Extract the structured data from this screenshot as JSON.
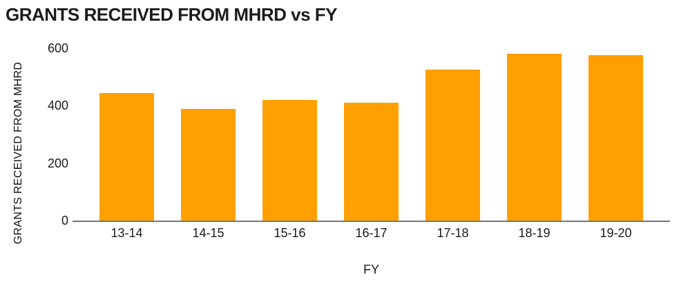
{
  "chart_data": {
    "type": "bar",
    "title": "GRANTS RECEIVED FROM MHRD vs FY",
    "xlabel": "FY",
    "ylabel": "GRANTS RECEIVED FROM MHRD",
    "categories": [
      "13-14",
      "14-15",
      "15-16",
      "16-17",
      "17-18",
      "18-19",
      "19-20"
    ],
    "values": [
      445,
      390,
      420,
      410,
      525,
      580,
      575
    ],
    "ylim": [
      0,
      600
    ],
    "yticks": [
      0,
      200,
      400,
      600
    ],
    "grid": false,
    "legend": false,
    "colors": {
      "bar": "#FFA000",
      "axis_line": "#757575",
      "text": "#1a1a1a",
      "background": "#ffffff"
    }
  }
}
